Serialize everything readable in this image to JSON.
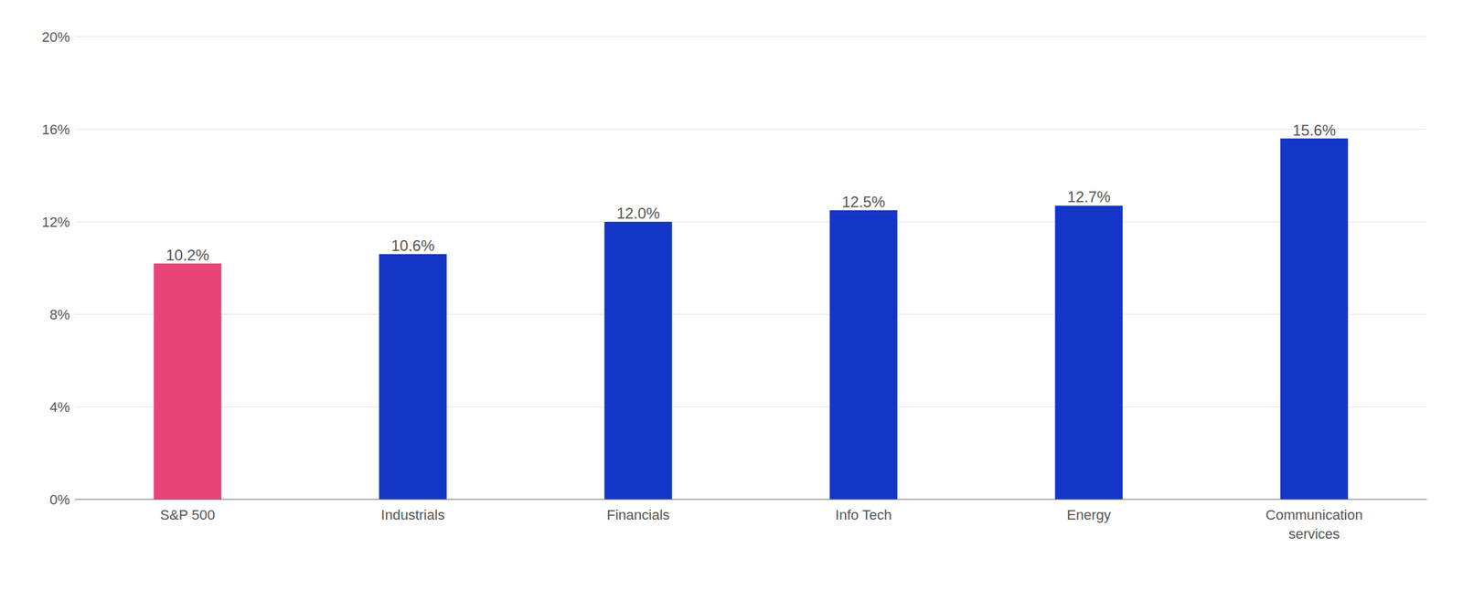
{
  "chart_data": {
    "type": "bar",
    "categories": [
      "S&P 500",
      "Industrials",
      "Financials",
      "Info Tech",
      "Energy",
      "Communication\nservices"
    ],
    "values": [
      10.2,
      10.6,
      12.0,
      12.5,
      12.7,
      15.6
    ],
    "value_labels": [
      "10.2%",
      "10.6%",
      "12.0%",
      "12.5%",
      "12.7%",
      "15.6%"
    ],
    "data_labels": true,
    "colors": [
      "#e8447a",
      "#1336c8",
      "#1336c8",
      "#1336c8",
      "#1336c8",
      "#1336c8"
    ],
    "ylim": [
      0,
      20
    ],
    "yticks": [
      {
        "value": 0,
        "label": "0%"
      },
      {
        "value": 4,
        "label": "4%"
      },
      {
        "value": 8,
        "label": "8%"
      },
      {
        "value": 12,
        "label": "12%"
      },
      {
        "value": 16,
        "label": "16%"
      },
      {
        "value": 20,
        "label": "20%"
      }
    ],
    "grid": true
  }
}
